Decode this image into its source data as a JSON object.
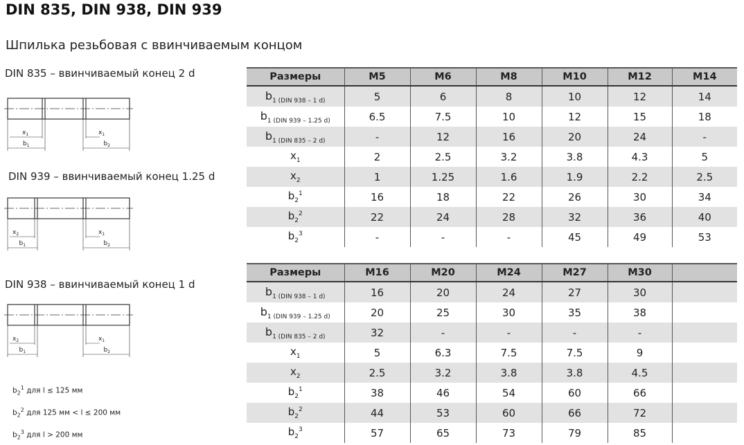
{
  "title": "DIN 835, DIN 938, DIN 939",
  "subtitle": "Шпилька резьбовая с ввинчиваемым концом",
  "drawings": [
    {
      "caption": "DIN 835 – ввинчиваемый конец 2 d",
      "left_x": "x1",
      "right_x": "x1",
      "left_b": "b1",
      "right_b": "b2"
    },
    {
      "caption": "DIN 939 – ввинчиваемый конец 1.25 d",
      "left_x": "x2",
      "right_x": "x1",
      "left_b": "b1",
      "right_b": "b2"
    },
    {
      "caption": "DIN 938 – ввинчиваемый конец 1 d",
      "left_x": "x2",
      "right_x": "x1",
      "left_b": "b1",
      "right_b": "b2"
    }
  ],
  "notes": [
    {
      "main": "b",
      "sub": "2",
      "sup": "1",
      "text": " для l ≤ 125 мм"
    },
    {
      "main": "b",
      "sub": "2",
      "sup": "2",
      "text": " для 125 мм < l ≤ 200 мм"
    },
    {
      "main": "b",
      "sub": "2",
      "sup": "3",
      "text": " для l > 200 мм"
    }
  ],
  "row_labels": [
    {
      "main": "b",
      "sub": "1 (DIN 938 – 1 d)",
      "sup": ""
    },
    {
      "main": "b",
      "sub": "1 (DIN 939 – 1.25 d)",
      "sup": ""
    },
    {
      "main": "b",
      "sub": "1 (DIN 835 – 2 d)",
      "sup": ""
    },
    {
      "main": "x",
      "sub": "1",
      "sup": ""
    },
    {
      "main": "x",
      "sub": "2",
      "sup": ""
    },
    {
      "main": "b",
      "sub": "2",
      "sup": "1"
    },
    {
      "main": "b",
      "sub": "2",
      "sup": "2"
    },
    {
      "main": "b",
      "sub": "2",
      "sup": "3"
    }
  ],
  "tables": [
    {
      "header": [
        "Размеры",
        "M5",
        "M6",
        "M8",
        "M10",
        "M12",
        "M14"
      ],
      "rows": [
        [
          "5",
          "6",
          "8",
          "10",
          "12",
          "14"
        ],
        [
          "6.5",
          "7.5",
          "10",
          "12",
          "15",
          "18"
        ],
        [
          "-",
          "12",
          "16",
          "20",
          "24",
          "-"
        ],
        [
          "2",
          "2.5",
          "3.2",
          "3.8",
          "4.3",
          "5"
        ],
        [
          "1",
          "1.25",
          "1.6",
          "1.9",
          "2.2",
          "2.5"
        ],
        [
          "16",
          "18",
          "22",
          "26",
          "30",
          "34"
        ],
        [
          "22",
          "24",
          "28",
          "32",
          "36",
          "40"
        ],
        [
          "-",
          "-",
          "-",
          "45",
          "49",
          "53"
        ]
      ]
    },
    {
      "header": [
        "Размеры",
        "M16",
        "M20",
        "M24",
        "M27",
        "M30",
        ""
      ],
      "rows": [
        [
          "16",
          "20",
          "24",
          "27",
          "30",
          ""
        ],
        [
          "20",
          "25",
          "30",
          "35",
          "38",
          ""
        ],
        [
          "32",
          "-",
          "-",
          "-",
          "-",
          ""
        ],
        [
          "5",
          "6.3",
          "7.5",
          "7.5",
          "9",
          ""
        ],
        [
          "2.5",
          "3.2",
          "3.8",
          "3.8",
          "4.5",
          ""
        ],
        [
          "38",
          "46",
          "54",
          "60",
          "66",
          ""
        ],
        [
          "44",
          "53",
          "60",
          "66",
          "72",
          ""
        ],
        [
          "57",
          "65",
          "73",
          "79",
          "85",
          ""
        ]
      ]
    }
  ]
}
